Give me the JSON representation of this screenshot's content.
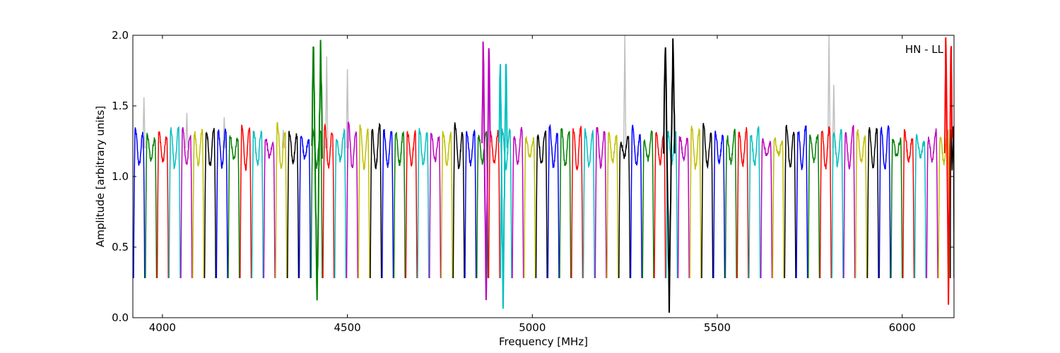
{
  "chart_data": {
    "type": "line",
    "title": "",
    "xlabel": "Frequency [MHz]",
    "ylabel": "Amplitude [arbitrary units]",
    "xlim": [
      3920,
      6140
    ],
    "ylim": [
      0.0,
      2.0
    ],
    "x_ticks": [
      4000,
      4500,
      5000,
      5500,
      6000
    ],
    "y_ticks": [
      0.0,
      0.5,
      1.0,
      1.5,
      2.0
    ],
    "x_tick_labels": [
      "4000",
      "4500",
      "5000",
      "5500",
      "6000"
    ],
    "y_tick_labels": [
      "0.0",
      "0.5",
      "1.0",
      "1.5",
      "2.0"
    ],
    "annotation": "HN - LL",
    "grid": false,
    "legend": "none",
    "colors": [
      "#0000ff",
      "#008000",
      "#ff0000",
      "#00bfbf",
      "#bf00bf",
      "#bfbf00",
      "#000000"
    ],
    "background_color": "#c0c0c0",
    "channel_width_mhz": 32,
    "passband_level": 1.2,
    "edge_level": 0.28,
    "strong_notches": [
      {
        "x": 4418,
        "width": 28,
        "min": 0.08,
        "peak": 2.0,
        "color": "#008000"
      },
      {
        "x": 4875,
        "width": 22,
        "min": 0.09,
        "peak": 2.0,
        "color": "#bf00bf"
      },
      {
        "x": 4921,
        "width": 22,
        "min": 0.08,
        "peak": 1.85,
        "color": "#00bfbf"
      },
      {
        "x": 5370,
        "width": 30,
        "min": 0.1,
        "peak": 2.0,
        "color": "#000000"
      },
      {
        "x": 6125,
        "width": 20,
        "min": 0.12,
        "peak": 2.0,
        "color": "#ff0000"
      }
    ],
    "gray_spikes": [
      {
        "x": 3950,
        "y": 1.56
      },
      {
        "x": 4066,
        "y": 1.45
      },
      {
        "x": 4167,
        "y": 1.42
      },
      {
        "x": 4327,
        "y": 1.33
      },
      {
        "x": 4444,
        "y": 1.85
      },
      {
        "x": 4500,
        "y": 1.76
      },
      {
        "x": 5250,
        "y": 2.0
      },
      {
        "x": 5802,
        "y": 2.0
      },
      {
        "x": 5815,
        "y": 1.65
      }
    ]
  }
}
